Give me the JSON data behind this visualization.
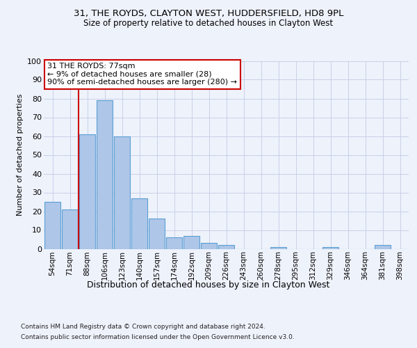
{
  "title1": "31, THE ROYDS, CLAYTON WEST, HUDDERSFIELD, HD8 9PL",
  "title2": "Size of property relative to detached houses in Clayton West",
  "xlabel": "Distribution of detached houses by size in Clayton West",
  "ylabel": "Number of detached properties",
  "footnote1": "Contains HM Land Registry data © Crown copyright and database right 2024.",
  "footnote2": "Contains public sector information licensed under the Open Government Licence v3.0.",
  "annotation_title": "31 THE ROYDS: 77sqm",
  "annotation_line1": "← 9% of detached houses are smaller (28)",
  "annotation_line2": "90% of semi-detached houses are larger (280) →",
  "bar_categories": [
    "54sqm",
    "71sqm",
    "88sqm",
    "106sqm",
    "123sqm",
    "140sqm",
    "157sqm",
    "174sqm",
    "192sqm",
    "209sqm",
    "226sqm",
    "243sqm",
    "260sqm",
    "278sqm",
    "295sqm",
    "312sqm",
    "329sqm",
    "346sqm",
    "364sqm",
    "381sqm",
    "398sqm"
  ],
  "bar_values": [
    25,
    21,
    61,
    79,
    60,
    27,
    16,
    6,
    7,
    3,
    2,
    0,
    0,
    1,
    0,
    0,
    1,
    0,
    0,
    2,
    0
  ],
  "bar_color": "#aec6e8",
  "bar_edge_color": "#5a9fd4",
  "red_line_x": 1.5,
  "ylim": [
    0,
    100
  ],
  "background_color": "#eef2fb",
  "annotation_box_color": "#ffffff",
  "annotation_box_edge": "#cc0000",
  "red_line_color": "#cc0000",
  "grid_color": "#c8d0e8"
}
